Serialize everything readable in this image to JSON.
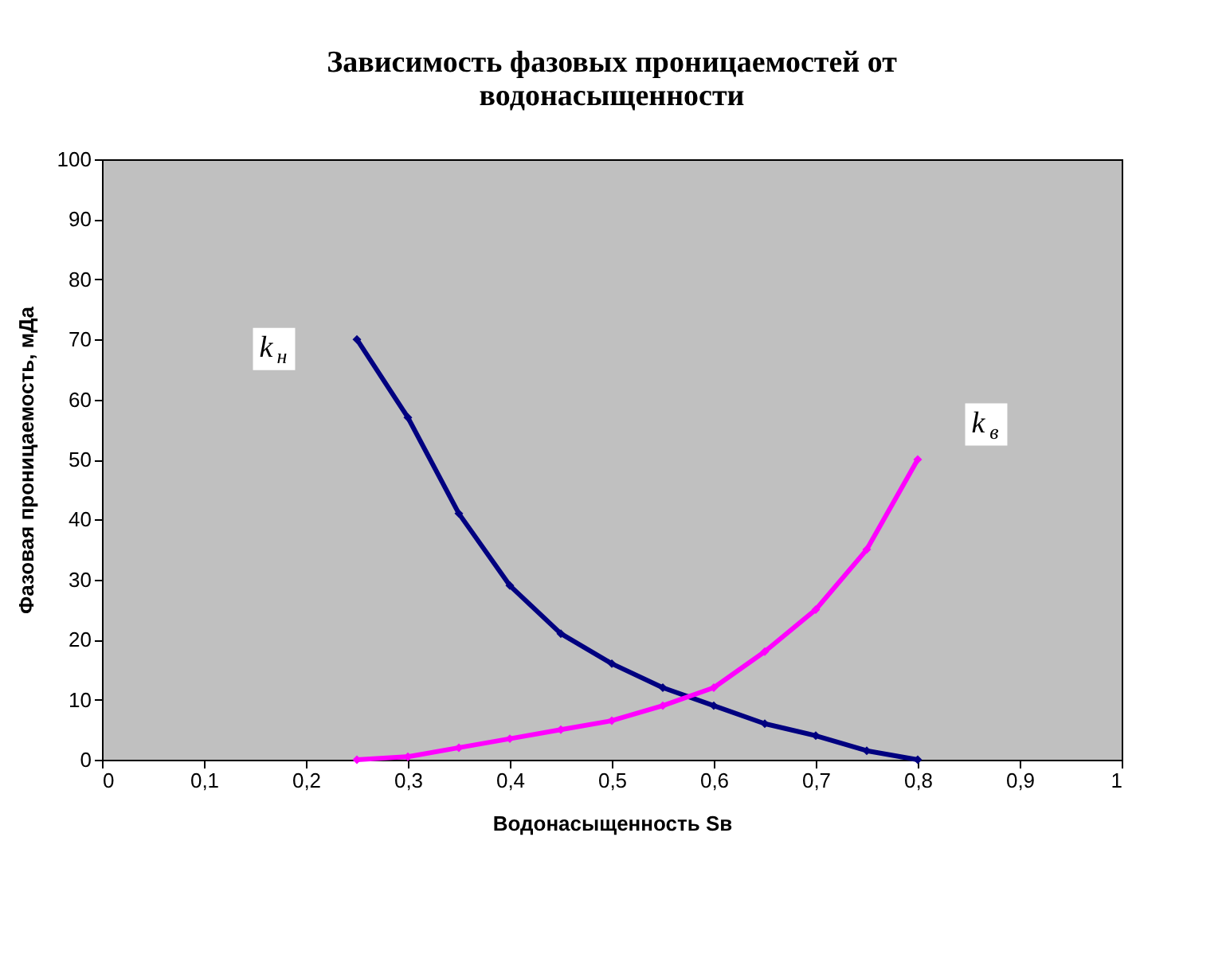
{
  "chart_data": {
    "type": "line",
    "title": "Зависимость фазовых проницаемостей от водонасыщенности",
    "xlabel": "Водонасыщенность Sв",
    "ylabel": "Фазовая проницаемость, мДа",
    "x": [
      0.25,
      0.3,
      0.35,
      0.4,
      0.45,
      0.5,
      0.55,
      0.6,
      0.65,
      0.7,
      0.75,
      0.8
    ],
    "series": [
      {
        "name": "k$_{н}$",
        "color": "#000080",
        "values": [
          70,
          57,
          41,
          29,
          21,
          16,
          12,
          9,
          6,
          4,
          1.5,
          0
        ]
      },
      {
        "name": "k$_{в}$",
        "color": "#ff00ff",
        "values": [
          0,
          0.5,
          2,
          3.5,
          5,
          6.5,
          9,
          12,
          18,
          25,
          35,
          50
        ]
      }
    ],
    "xlim": [
      0,
      1
    ],
    "xticks": [
      0,
      {
        "value": 0.1,
        "label": "0,1"
      },
      {
        "value": 0.2,
        "label": "0,2"
      },
      {
        "value": 0.3,
        "label": "0,3"
      },
      {
        "value": 0.4,
        "label": "0,4"
      },
      {
        "value": 0.5,
        "label": "0,5"
      },
      {
        "value": 0.6,
        "label": "0,6"
      },
      {
        "value": 0.7,
        "label": "0,7"
      },
      {
        "value": 0.8,
        "label": "0,8"
      },
      {
        "value": 0.9,
        "label": "0,9"
      },
      1
    ],
    "ylim": [
      0,
      100
    ],
    "yticks": [
      0,
      10,
      20,
      30,
      40,
      50,
      60,
      70,
      80,
      90,
      100
    ],
    "grid": false,
    "legend": false,
    "marker": "diamond",
    "line_style": "solid"
  }
}
